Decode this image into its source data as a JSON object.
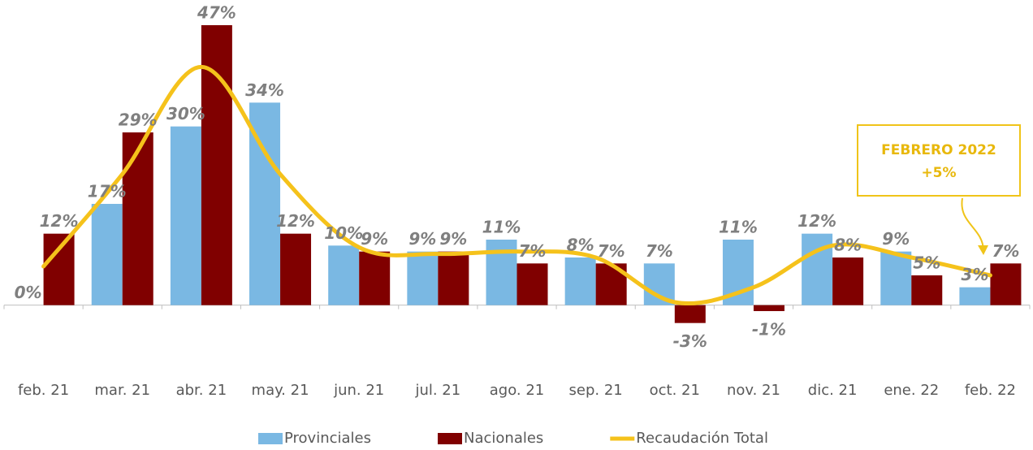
{
  "chart_data": {
    "type": "bar",
    "categories": [
      "feb. 21",
      "mar. 21",
      "abr. 21",
      "may. 21",
      "jun. 21",
      "jul. 21",
      "ago. 21",
      "sep. 21",
      "oct. 21",
      "nov. 21",
      "dic. 21",
      "ene. 22",
      "feb. 22"
    ],
    "series": [
      {
        "name": "Provinciales",
        "color": "#7ab8e3",
        "values": [
          0,
          17,
          30,
          34,
          10,
          9,
          11,
          8,
          7,
          11,
          12,
          9,
          3
        ],
        "value_labels": [
          "0%",
          "17%",
          "30%",
          "34%",
          "10%",
          "9%",
          "11%",
          "8%",
          "7%",
          "11%",
          "12%",
          "9%",
          "3%"
        ]
      },
      {
        "name": "Nacionales",
        "color": "#800000",
        "values": [
          12,
          29,
          47,
          12,
          9,
          9,
          7,
          7,
          -3,
          -1,
          8,
          5,
          7
        ],
        "value_labels": [
          "12%",
          "29%",
          "47%",
          "12%",
          "9%",
          "9%",
          "7%",
          "7%",
          "-3%",
          "-1%",
          "8%",
          "5%",
          "7%"
        ]
      },
      {
        "name": "Recaudación Total",
        "type": "line",
        "color": "#f5c21b",
        "values": [
          6.5,
          22,
          40,
          22,
          9.7,
          8.6,
          9,
          8,
          0.5,
          3,
          10,
          8,
          5
        ]
      }
    ],
    "ylim": [
      -10,
      50
    ],
    "annotation": {
      "title": "FEBRERO 2022",
      "text": "+5%"
    }
  }
}
